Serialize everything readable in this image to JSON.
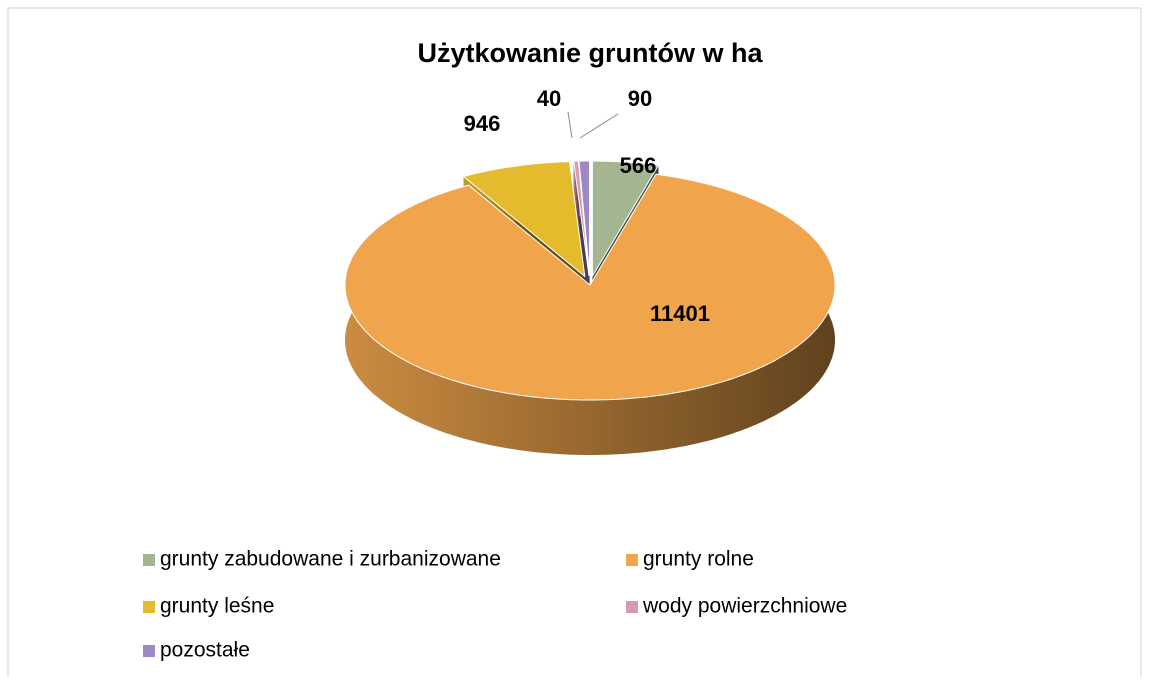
{
  "chart_data": {
    "type": "pie",
    "title": "Użytkowanie gruntów w ha",
    "categories": [
      "grunty zabudowane i zurbanizowane",
      "grunty rolne",
      "grunty leśne",
      "wody powierzchniowe",
      "pozostałe"
    ],
    "values": [
      566,
      11401,
      946,
      40,
      90
    ],
    "colors": [
      "#a4b591",
      "#f0a54c",
      "#e3bb2c",
      "#d99aab",
      "#9c88c6"
    ]
  }
}
